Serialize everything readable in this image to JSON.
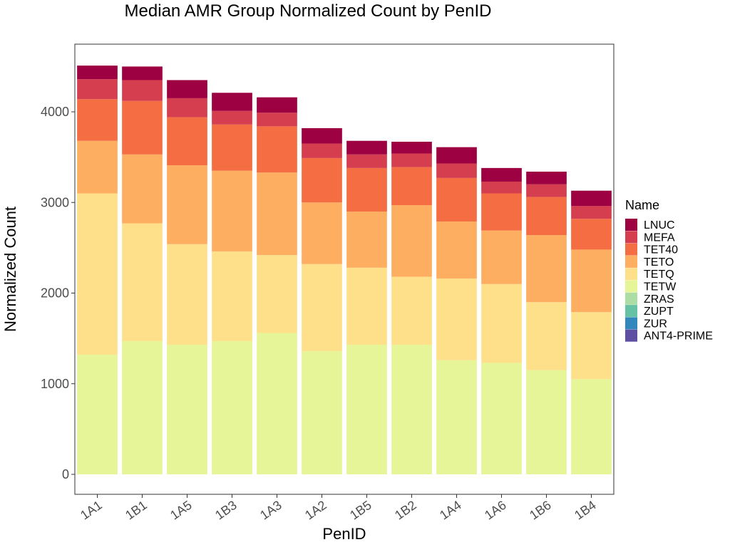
{
  "chart_data": {
    "type": "bar",
    "stacked": true,
    "title": "Median AMR Group Normalized Count by PenID",
    "xlabel": "PenID",
    "ylabel": "Normalized Count",
    "ylim": [
      0,
      4500
    ],
    "yticks": [
      0,
      1000,
      2000,
      3000,
      4000
    ],
    "grid": false,
    "legend_title": "Name",
    "legend_position": "right",
    "categories": [
      "1A1",
      "1B1",
      "1A5",
      "1B3",
      "1A3",
      "1A2",
      "1B5",
      "1B2",
      "1A4",
      "1A6",
      "1B6",
      "1B4"
    ],
    "series": [
      {
        "name": "LNUC",
        "color": "#9E0142",
        "values": [
          150,
          150,
          200,
          200,
          170,
          170,
          150,
          130,
          180,
          150,
          140,
          170
        ]
      },
      {
        "name": "MEFA",
        "color": "#D53E4F",
        "values": [
          220,
          230,
          210,
          150,
          150,
          160,
          150,
          150,
          160,
          130,
          140,
          140
        ]
      },
      {
        "name": "TET40",
        "color": "#F46D43",
        "values": [
          460,
          590,
          530,
          510,
          510,
          490,
          480,
          420,
          480,
          410,
          420,
          340
        ]
      },
      {
        "name": "TETO",
        "color": "#FDAE61",
        "values": [
          580,
          760,
          870,
          890,
          910,
          680,
          620,
          790,
          630,
          590,
          740,
          690
        ]
      },
      {
        "name": "TETQ",
        "color": "#FEE08B",
        "values": [
          1780,
          1300,
          1110,
          990,
          860,
          960,
          850,
          750,
          900,
          870,
          750,
          740
        ]
      },
      {
        "name": "TETW",
        "color": "#E6F598",
        "values": [
          1320,
          1470,
          1430,
          1470,
          1560,
          1360,
          1430,
          1430,
          1260,
          1230,
          1150,
          1050
        ]
      },
      {
        "name": "ZRAS",
        "color": "#ABDDA4",
        "values": [
          0,
          0,
          0,
          0,
          0,
          0,
          0,
          0,
          0,
          0,
          0,
          0
        ]
      },
      {
        "name": "ZUPT",
        "color": "#66C2A5",
        "values": [
          0,
          0,
          0,
          0,
          0,
          0,
          0,
          0,
          0,
          0,
          0,
          0
        ]
      },
      {
        "name": "ZUR",
        "color": "#3288BD",
        "values": [
          0,
          0,
          0,
          0,
          0,
          0,
          0,
          0,
          0,
          0,
          0,
          0
        ]
      },
      {
        "name": "ANT4-PRIME",
        "color": "#5E4FA2",
        "values": [
          0,
          0,
          0,
          0,
          0,
          0,
          0,
          0,
          0,
          0,
          0,
          0
        ]
      }
    ]
  }
}
